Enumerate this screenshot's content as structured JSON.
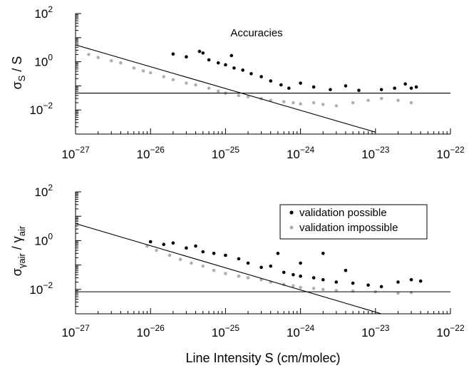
{
  "chart_data": [
    {
      "type": "scatter",
      "title": "",
      "annotation": "Accuracies",
      "xlabel": "",
      "ylabel_main": "σ",
      "ylabel_sub": "S",
      "ylabel_tail": " / S",
      "xscale": "log",
      "yscale": "log",
      "xlim": [
        1e-27,
        1e-22
      ],
      "ylim": [
        0.001,
        100
      ],
      "x_ticks": [
        {
          "base": "10",
          "exp": "−27"
        },
        {
          "base": "10",
          "exp": "−26"
        },
        {
          "base": "10",
          "exp": "−25"
        },
        {
          "base": "10",
          "exp": "−24"
        },
        {
          "base": "10",
          "exp": "−23"
        },
        {
          "base": "10",
          "exp": "−22"
        }
      ],
      "y_ticks": [
        {
          "base": "10",
          "exp": "2"
        },
        {
          "base": "10",
          "exp": "0"
        },
        {
          "base": "10",
          "exp": "−2"
        }
      ],
      "reference_lines": [
        {
          "kind": "power",
          "x_range": [
            1e-27,
            1e-23
          ],
          "y_range": [
            5.0,
            0.0012
          ]
        },
        {
          "kind": "horizontal",
          "y": 0.05
        }
      ],
      "series": [
        {
          "color": "#000000",
          "points": [
            [
              2e-26,
              2.1
            ],
            [
              3e-26,
              1.6
            ],
            [
              4.5e-26,
              2.7
            ],
            [
              6e-26,
              1.2
            ],
            [
              8e-26,
              0.9
            ],
            [
              1e-25,
              0.75
            ],
            [
              1.3e-25,
              0.55
            ],
            [
              1.7e-25,
              0.45
            ],
            [
              2.2e-25,
              0.32
            ],
            [
              3e-25,
              0.24
            ],
            [
              4e-25,
              0.16
            ],
            [
              5.5e-25,
              0.11
            ],
            [
              7e-25,
              0.08
            ],
            [
              1e-24,
              0.13
            ],
            [
              1.5e-24,
              0.09
            ],
            [
              2.5e-24,
              0.07
            ],
            [
              4e-24,
              0.1
            ],
            [
              6e-24,
              0.065
            ],
            [
              1.2e-23,
              0.07
            ],
            [
              1.8e-23,
              0.08
            ],
            [
              2.5e-23,
              0.12
            ],
            [
              3e-23,
              0.08
            ],
            [
              3.5e-23,
              0.09
            ],
            [
              1.2e-25,
              1.8
            ],
            [
              5e-26,
              2.3
            ]
          ]
        },
        {
          "color": "#b0b0b0",
          "points": [
            [
              1e-27,
              2.5
            ],
            [
              1.5e-27,
              2.0
            ],
            [
              2e-27,
              1.5
            ],
            [
              3e-27,
              1.1
            ],
            [
              4e-27,
              0.9
            ],
            [
              6e-27,
              0.55
            ],
            [
              8e-27,
              0.42
            ],
            [
              1e-26,
              0.35
            ],
            [
              1.5e-26,
              0.24
            ],
            [
              2e-26,
              0.18
            ],
            [
              3e-26,
              0.13
            ],
            [
              4e-26,
              0.11
            ],
            [
              6e-26,
              0.08
            ],
            [
              8e-26,
              0.06
            ],
            [
              1e-25,
              0.05
            ],
            [
              1.5e-25,
              0.04
            ],
            [
              2e-25,
              0.035
            ],
            [
              3e-25,
              0.03
            ],
            [
              4e-25,
              0.025
            ],
            [
              6e-25,
              0.022
            ],
            [
              8e-25,
              0.02
            ],
            [
              1e-24,
              0.018
            ],
            [
              1.5e-24,
              0.02
            ],
            [
              2e-24,
              0.017
            ],
            [
              3e-24,
              0.015
            ],
            [
              5e-24,
              0.02
            ],
            [
              8e-24,
              0.025
            ],
            [
              1.2e-23,
              0.03
            ],
            [
              2e-23,
              0.025
            ],
            [
              3e-23,
              0.02
            ]
          ]
        }
      ]
    },
    {
      "type": "scatter",
      "title": "",
      "xlabel": "Line Intensity S (cm/molec)",
      "ylabel_main": "σ",
      "ylabel_sub": "γair",
      "ylabel_tail": " / γ",
      "ylabel_tail_sub": "air",
      "xscale": "log",
      "yscale": "log",
      "xlim": [
        1e-27,
        1e-22
      ],
      "ylim": [
        0.001,
        100
      ],
      "x_ticks": [
        {
          "base": "10",
          "exp": "−27"
        },
        {
          "base": "10",
          "exp": "−26"
        },
        {
          "base": "10",
          "exp": "−25"
        },
        {
          "base": "10",
          "exp": "−24"
        },
        {
          "base": "10",
          "exp": "−23"
        },
        {
          "base": "10",
          "exp": "−22"
        }
      ],
      "y_ticks": [
        {
          "base": "10",
          "exp": "2"
        },
        {
          "base": "10",
          "exp": "0"
        },
        {
          "base": "10",
          "exp": "−2"
        }
      ],
      "legend_position": "top-right",
      "reference_lines": [
        {
          "kind": "power",
          "x_range": [
            1e-27,
            1.2e-23
          ],
          "y_range": [
            5.0,
            0.001
          ]
        },
        {
          "kind": "horizontal",
          "y": 0.008
        }
      ],
      "series": [
        {
          "name": "validation possible",
          "color": "#000000",
          "points": [
            [
              1e-26,
              0.9
            ],
            [
              1.5e-26,
              0.7
            ],
            [
              2e-26,
              0.8
            ],
            [
              3e-26,
              0.5
            ],
            [
              4e-26,
              0.6
            ],
            [
              5e-26,
              0.35
            ],
            [
              7e-26,
              0.3
            ],
            [
              1e-25,
              0.25
            ],
            [
              1.5e-25,
              0.18
            ],
            [
              2e-25,
              0.12
            ],
            [
              3e-25,
              0.08
            ],
            [
              4e-25,
              0.09
            ],
            [
              6e-25,
              0.05
            ],
            [
              8e-25,
              0.04
            ],
            [
              1e-24,
              0.035
            ],
            [
              1.5e-24,
              0.03
            ],
            [
              2e-24,
              0.025
            ],
            [
              3e-24,
              0.02
            ],
            [
              5e-24,
              0.018
            ],
            [
              8e-24,
              0.015
            ],
            [
              1.2e-23,
              0.013
            ],
            [
              2e-23,
              0.02
            ],
            [
              3e-23,
              0.025
            ],
            [
              4e-23,
              0.022
            ],
            [
              5e-25,
              0.3
            ],
            [
              1e-24,
              0.12
            ],
            [
              2e-24,
              0.3
            ],
            [
              4e-24,
              0.06
            ]
          ]
        },
        {
          "name": "validation impossible",
          "color": "#b0b0b0",
          "points": [
            [
              9e-27,
              0.6
            ],
            [
              1.2e-26,
              0.4
            ],
            [
              1.8e-26,
              0.25
            ],
            [
              2.5e-26,
              0.17
            ],
            [
              3.5e-26,
              0.12
            ],
            [
              5e-26,
              0.09
            ],
            [
              7e-26,
              0.06
            ],
            [
              1e-25,
              0.045
            ],
            [
              1.5e-25,
              0.035
            ],
            [
              2e-25,
              0.03
            ],
            [
              3e-25,
              0.025
            ],
            [
              4e-25,
              0.02
            ],
            [
              6e-25,
              0.016
            ],
            [
              8e-25,
              0.014
            ],
            [
              1e-24,
              0.012
            ],
            [
              1.5e-24,
              0.011
            ],
            [
              2e-24,
              0.01
            ],
            [
              3e-24,
              0.009
            ],
            [
              5e-24,
              0.0085
            ],
            [
              1e-23,
              0.008
            ],
            [
              2e-23,
              0.007
            ],
            [
              3e-23,
              0.0075
            ]
          ]
        }
      ]
    }
  ]
}
